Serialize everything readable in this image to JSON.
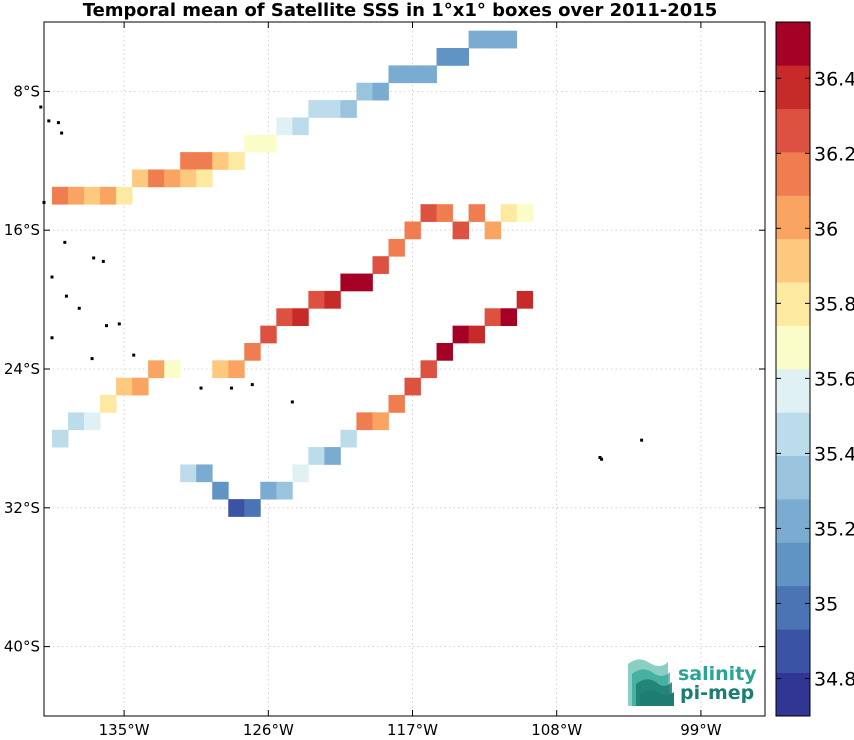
{
  "chart_data": {
    "type": "heatmap",
    "title": "Temporal mean of Satellite SSS in 1°x1° boxes over 2011-2015",
    "x_ticks": [
      "135°W",
      "126°W",
      "117°W",
      "108°W",
      "99°W"
    ],
    "y_ticks": [
      "8°S",
      "16°S",
      "24°S",
      "32°S",
      "40°S"
    ],
    "colorbar_ticks": [
      "36.4",
      "36.2",
      "36",
      "35.8",
      "35.6",
      "35.4",
      "35.2",
      "35",
      "34.8"
    ],
    "colorbar_range": [
      34.7,
      36.55
    ],
    "x_range": [
      -140,
      -95
    ],
    "y_range": [
      -44,
      -4
    ],
    "cell_size_deg": 1,
    "grid": true,
    "legend": "colorbar-right",
    "swaths": [
      {
        "name": "northern",
        "values": [
          [
            -131,
            -12,
            36.1
          ],
          [
            -130,
            -12,
            36.1
          ],
          [
            -129,
            -12,
            35.9
          ],
          [
            -128,
            -12,
            35.8
          ],
          [
            -127,
            -11,
            35.7
          ],
          [
            -126,
            -11,
            35.7
          ],
          [
            -125,
            -10,
            35.6
          ],
          [
            -124,
            -10,
            35.5
          ],
          [
            -123,
            -9,
            35.5
          ],
          [
            -122,
            -9,
            35.4
          ],
          [
            -121,
            -9,
            35.3
          ],
          [
            -120,
            -8,
            35.3
          ],
          [
            -119,
            -8,
            35.2
          ],
          [
            -118,
            -7,
            35.2
          ],
          [
            -117,
            -7,
            35.2
          ],
          [
            -116,
            -7,
            35.2
          ],
          [
            -115,
            -6,
            35.1
          ],
          [
            -114,
            -6,
            35.1
          ],
          [
            -113,
            -5,
            35.2
          ],
          [
            -112,
            -5,
            35.2
          ],
          [
            -111,
            -5,
            35.2
          ]
        ]
      },
      {
        "name": "central",
        "values": [
          [
            -139,
            -14,
            36.1
          ],
          [
            -138,
            -14,
            36.0
          ],
          [
            -137,
            -14,
            35.9
          ],
          [
            -136,
            -14,
            36.0
          ],
          [
            -135,
            -14,
            35.8
          ],
          [
            -134,
            -13,
            35.9
          ],
          [
            -133,
            -13,
            36.1
          ],
          [
            -132,
            -13,
            36.0
          ],
          [
            -131,
            -13,
            35.9
          ],
          [
            -130,
            -13,
            35.8
          ],
          [
            -129,
            -24,
            35.9
          ],
          [
            -128,
            -24,
            36.0
          ],
          [
            -127,
            -23,
            36.2
          ],
          [
            -126,
            -22,
            36.3
          ],
          [
            -125,
            -21,
            36.3
          ],
          [
            -124,
            -21,
            36.4
          ],
          [
            -123,
            -20,
            36.3
          ],
          [
            -122,
            -20,
            36.4
          ],
          [
            -121,
            -19,
            36.5
          ],
          [
            -120,
            -19,
            36.5
          ],
          [
            -119,
            -18,
            36.3
          ],
          [
            -118,
            -17,
            36.1
          ],
          [
            -117,
            -16,
            36.2
          ],
          [
            -116,
            -15,
            36.3
          ],
          [
            -115,
            -15,
            36.2
          ],
          [
            -114,
            -16,
            36.3
          ],
          [
            -113,
            -15,
            36.1
          ],
          [
            -112,
            -16,
            36.0
          ],
          [
            -111,
            -15,
            35.8
          ],
          [
            -110,
            -15,
            35.7
          ]
        ]
      },
      {
        "name": "southern",
        "values": [
          [
            -139,
            -28,
            35.5
          ],
          [
            -138,
            -27,
            35.5
          ],
          [
            -137,
            -27,
            35.6
          ],
          [
            -136,
            -26,
            35.8
          ],
          [
            -135,
            -25,
            35.9
          ],
          [
            -134,
            -25,
            36.0
          ],
          [
            -133,
            -24,
            36.0
          ],
          [
            -132,
            -24,
            35.7
          ],
          [
            -131,
            -30,
            35.4
          ],
          [
            -130,
            -30,
            35.2
          ],
          [
            -129,
            -31,
            35.1
          ],
          [
            -128,
            -32,
            34.9
          ],
          [
            -127,
            -32,
            35.0
          ],
          [
            -126,
            -31,
            35.2
          ],
          [
            -125,
            -31,
            35.3
          ],
          [
            -124,
            -30,
            35.6
          ],
          [
            -123,
            -29,
            35.5
          ],
          [
            -122,
            -29,
            35.2
          ],
          [
            -121,
            -28,
            35.5
          ],
          [
            -120,
            -27,
            36.1
          ],
          [
            -119,
            -27,
            36.0
          ],
          [
            -118,
            -26,
            36.1
          ],
          [
            -117,
            -25,
            36.3
          ],
          [
            -116,
            -24,
            36.3
          ],
          [
            -115,
            -23,
            36.5
          ],
          [
            -114,
            -22,
            36.5
          ],
          [
            -113,
            -22,
            36.4
          ],
          [
            -112,
            -21,
            36.3
          ],
          [
            -111,
            -21,
            36.5
          ],
          [
            -110,
            -20,
            36.4
          ]
        ]
      }
    ],
    "island_markers": [
      [
        -140.2,
        -8.9
      ],
      [
        -139.7,
        -9.7
      ],
      [
        -139.1,
        -9.8
      ],
      [
        -138.9,
        -10.4
      ],
      [
        -140.0,
        -14.4
      ],
      [
        -138.7,
        -16.7
      ],
      [
        -136.9,
        -17.6
      ],
      [
        -136.3,
        -17.8
      ],
      [
        -139.5,
        -18.7
      ],
      [
        -138.6,
        -19.8
      ],
      [
        -137.8,
        -20.5
      ],
      [
        -136.1,
        -21.5
      ],
      [
        -135.3,
        -21.4
      ],
      [
        -139.5,
        -22.2
      ],
      [
        -134.4,
        -23.2
      ],
      [
        -137.0,
        -23.4
      ],
      [
        -130.2,
        -25.1
      ],
      [
        -128.3,
        -25.1
      ],
      [
        -127.0,
        -24.9
      ],
      [
        -124.5,
        -25.9
      ],
      [
        -105.3,
        -29.1
      ],
      [
        -105.2,
        -29.2
      ],
      [
        -102.7,
        -28.1
      ]
    ]
  },
  "logo": {
    "line1": "salinity",
    "line2": "pi-mep"
  },
  "colors": {
    "colormap": [
      "#313695",
      "#3a53a4",
      "#4a74b4",
      "#5f94c5",
      "#7aabd0",
      "#9ac3de",
      "#bcdceb",
      "#e0f1f3",
      "#fbfdc8",
      "#fee9a0",
      "#fdc97f",
      "#f9a461",
      "#ef7d4f",
      "#dd5140",
      "#c62b2a",
      "#a50026"
    ],
    "logo_teal": "#2ba593",
    "logo_dark": "#1d7d72"
  }
}
